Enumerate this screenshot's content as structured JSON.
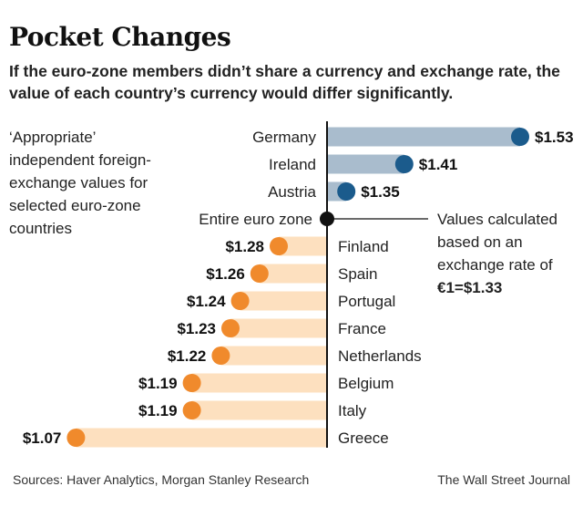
{
  "title": "Pocket Changes",
  "subtitle": "If the euro-zone members didn’t share a currency and exchange rate, the value of each country’s currency would differ significantly.",
  "side_note": "‘Appropriate’ independent foreign-exchange values for selected euro-zone countries",
  "annotation": {
    "text": "Values calculated based on an exchange rate of",
    "rate": "€1=$1.33"
  },
  "sources": "Sources: Haver Analytics, Morgan Stanley Research",
  "credit": "The Wall Street Journal",
  "colors": {
    "above_bar": "#a9bccd",
    "above_dot": "#1b5b8c",
    "below_bar": "#fde0bf",
    "below_dot": "#f08a2c",
    "axis": "#111111"
  },
  "chart_data": {
    "type": "bar",
    "orientation": "horizontal-diverging",
    "baseline": {
      "label": "Entire euro zone",
      "value": 1.33
    },
    "categories": [
      "Germany",
      "Ireland",
      "Austria",
      "Finland",
      "Spain",
      "Portugal",
      "France",
      "Netherlands",
      "Belgium",
      "Italy",
      "Greece"
    ],
    "values": [
      1.53,
      1.41,
      1.35,
      1.28,
      1.26,
      1.24,
      1.23,
      1.22,
      1.19,
      1.19,
      1.07
    ],
    "value_labels": [
      "$1.53",
      "$1.41",
      "$1.35",
      "$1.28",
      "$1.26",
      "$1.24",
      "$1.23",
      "$1.22",
      "$1.19",
      "$1.19",
      "$1.07"
    ]
  }
}
